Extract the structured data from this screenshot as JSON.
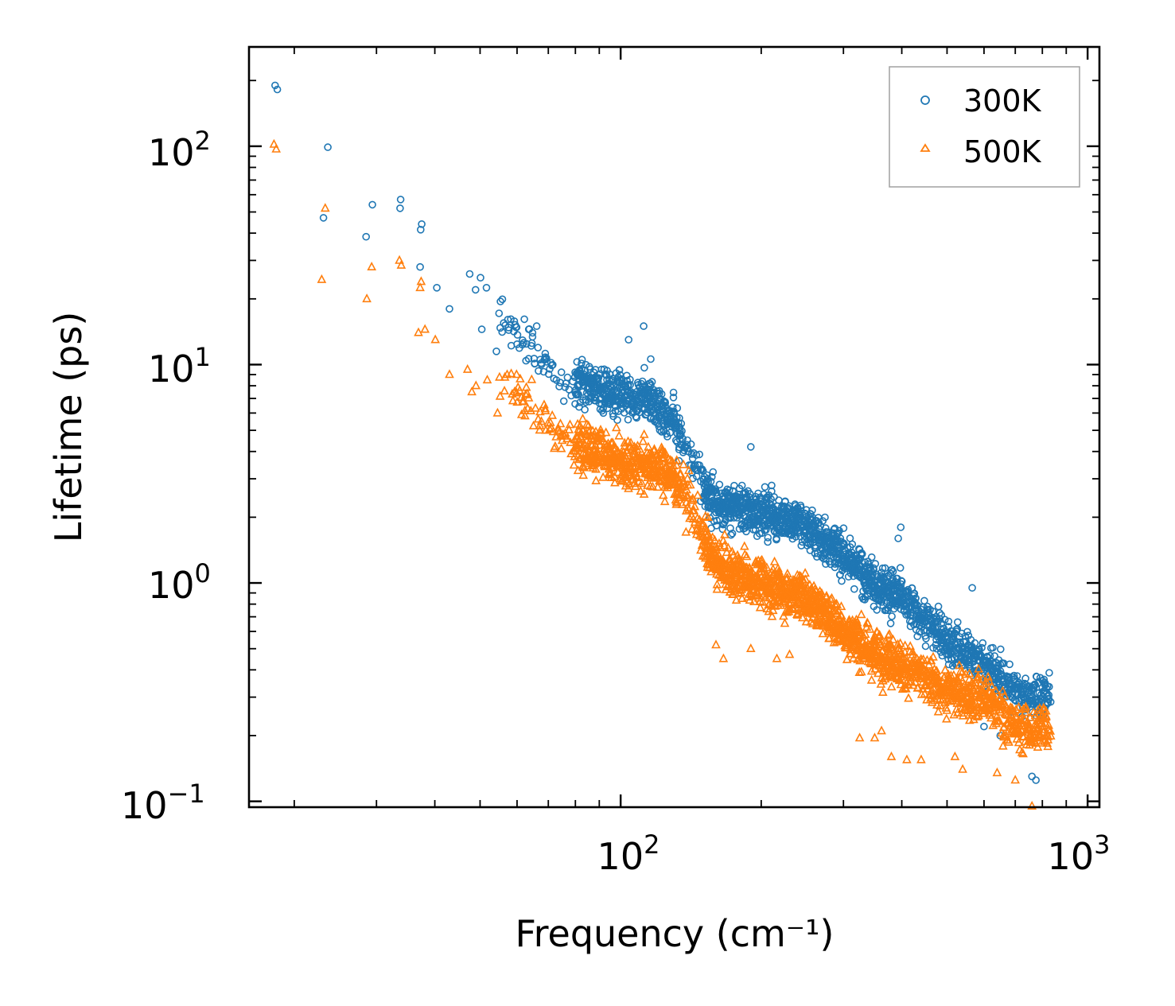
{
  "chart_data": {
    "type": "scatter",
    "xlabel": "Frequency (cm⁻¹)",
    "ylabel": "Lifetime (ps)",
    "xscale": "log",
    "yscale": "log",
    "xlim": [
      16,
      1060
    ],
    "ylim": [
      0.094,
      285
    ],
    "x_ticks": [
      {
        "value": 100,
        "base": "10",
        "exp": "2"
      },
      {
        "value": 1000,
        "base": "10",
        "exp": "3"
      }
    ],
    "y_ticks": [
      {
        "value": 0.1,
        "base": "10",
        "exp": "−1"
      },
      {
        "value": 1,
        "base": "10",
        "exp": "0"
      },
      {
        "value": 10,
        "base": "10",
        "exp": "1"
      },
      {
        "value": 100,
        "base": "10",
        "exp": "2"
      }
    ],
    "legend_position": "top-right",
    "series": [
      {
        "name": "300K",
        "marker": "circle",
        "color": "#1f77b4",
        "trend": [
          [
            18,
            190
          ],
          [
            23,
            95
          ],
          [
            30,
            50
          ],
          [
            40,
            28
          ],
          [
            50,
            19
          ],
          [
            60,
            14
          ],
          [
            70,
            10
          ],
          [
            80,
            8.3
          ],
          [
            100,
            7.2
          ],
          [
            115,
            7.0
          ],
          [
            130,
            5.5
          ],
          [
            145,
            3.2
          ],
          [
            160,
            2.3
          ],
          [
            200,
            2.1
          ],
          [
            250,
            1.8
          ],
          [
            300,
            1.35
          ],
          [
            350,
            1.0
          ],
          [
            400,
            0.85
          ],
          [
            500,
            0.55
          ],
          [
            600,
            0.42
          ],
          [
            700,
            0.32
          ],
          [
            830,
            0.3
          ]
        ],
        "scatter": 0.22,
        "outliers": [
          [
            18.2,
            190
          ],
          [
            18.4,
            182
          ],
          [
            23.6,
            99
          ],
          [
            23.1,
            47
          ],
          [
            28.5,
            38.5
          ],
          [
            29.4,
            54
          ],
          [
            33.8,
            57
          ],
          [
            33.7,
            52
          ],
          [
            37.5,
            44
          ],
          [
            37.3,
            41.5
          ],
          [
            37.2,
            28
          ],
          [
            40.4,
            22.5
          ],
          [
            43,
            18
          ],
          [
            47.5,
            26
          ],
          [
            48.9,
            22
          ],
          [
            50.1,
            25
          ],
          [
            51.6,
            22.5
          ],
          [
            54.2,
            11.5
          ],
          [
            59.2,
            15.8
          ],
          [
            66.1,
            15
          ],
          [
            91,
            9.5
          ],
          [
            104,
            13
          ],
          [
            112,
            15
          ],
          [
            116,
            10.6
          ],
          [
            190,
            4.2
          ],
          [
            398,
            1.8
          ],
          [
            393,
            1.6
          ],
          [
            381,
            1.15
          ],
          [
            566,
            0.95
          ],
          [
            600,
            0.22
          ],
          [
            650,
            0.2
          ],
          [
            760,
            0.13
          ],
          [
            775,
            0.125
          ]
        ]
      },
      {
        "name": "500K",
        "marker": "triangle",
        "color": "#ff7f0e",
        "trend": [
          [
            18,
            100
          ],
          [
            23,
            50
          ],
          [
            30,
            27
          ],
          [
            40,
            16
          ],
          [
            50,
            10
          ],
          [
            60,
            7.5
          ],
          [
            70,
            5.2
          ],
          [
            80,
            4.3
          ],
          [
            100,
            3.6
          ],
          [
            120,
            3.3
          ],
          [
            135,
            2.8
          ],
          [
            150,
            1.6
          ],
          [
            160,
            1.2
          ],
          [
            200,
            1.0
          ],
          [
            250,
            0.85
          ],
          [
            300,
            0.6
          ],
          [
            350,
            0.48
          ],
          [
            400,
            0.42
          ],
          [
            500,
            0.32
          ],
          [
            600,
            0.3
          ],
          [
            700,
            0.22
          ],
          [
            830,
            0.21
          ]
        ],
        "scatter": 0.24,
        "outliers": [
          [
            18.1,
            102
          ],
          [
            18.3,
            97
          ],
          [
            23.3,
            52
          ],
          [
            22.9,
            24.5
          ],
          [
            28.6,
            20
          ],
          [
            29.3,
            28
          ],
          [
            33.6,
            30
          ],
          [
            33.9,
            28.5
          ],
          [
            37.4,
            24
          ],
          [
            37.2,
            22.5
          ],
          [
            36.9,
            14
          ],
          [
            38.1,
            14.5
          ],
          [
            40.1,
            13
          ],
          [
            43,
            9
          ],
          [
            47,
            9.5
          ],
          [
            48,
            7.5
          ],
          [
            49,
            8
          ],
          [
            51.8,
            8.5
          ],
          [
            54.5,
            6
          ],
          [
            160,
            0.52
          ],
          [
            166,
            0.45
          ],
          [
            190,
            0.5
          ],
          [
            216,
            0.45
          ],
          [
            230,
            0.47
          ],
          [
            325,
            0.195
          ],
          [
            350,
            0.195
          ],
          [
            362,
            0.21
          ],
          [
            380,
            0.16
          ],
          [
            410,
            0.155
          ],
          [
            440,
            0.155
          ],
          [
            520,
            0.16
          ],
          [
            540,
            0.14
          ],
          [
            640,
            0.135
          ],
          [
            700,
            0.125
          ],
          [
            760,
            0.095
          ]
        ]
      }
    ]
  }
}
